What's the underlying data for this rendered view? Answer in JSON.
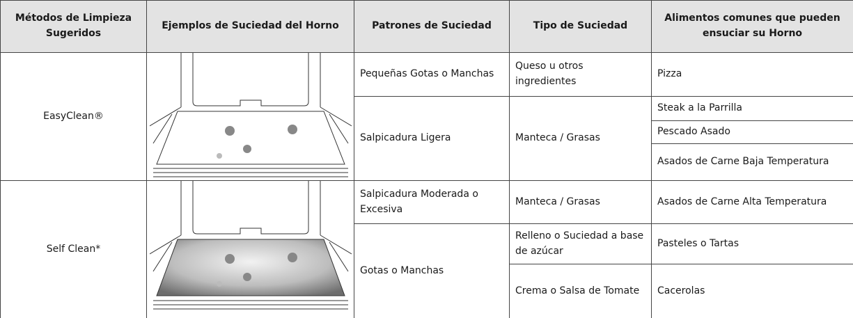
{
  "table": {
    "header": [
      "Métodos de Limpieza Sugeridos",
      "Ejemplos de Suciedad del Horno",
      "Patrones de Suciedad",
      "Tipo de Suciedad",
      "Alimentos comunes que pueden ensuciar su Horno"
    ],
    "rows": [
      [
        "EasyClean®",
        "Pequeñas Gotas o Manchas",
        "Queso u otros ingredientes",
        "Pizza"
      ],
      [
        "Salpicadura Ligera",
        "Manteca / Grasas",
        "Steak a la Parrilla"
      ],
      [
        "Pescado Asado"
      ],
      [
        "Asados de Carne Baja Temperatura"
      ],
      [
        "Self Clean*",
        "Salpicadura Moderada o Excesiva",
        "Manteca / Grasas",
        "Asados de Carne Alta Temperatura"
      ],
      [
        "Gotas o Manchas",
        "Relleno o Suciedad a base de azúcar",
        "Pasteles o Tartas"
      ],
      [
        "Crema o Salsa de Tomate",
        "Cacerolas"
      ]
    ]
  }
}
